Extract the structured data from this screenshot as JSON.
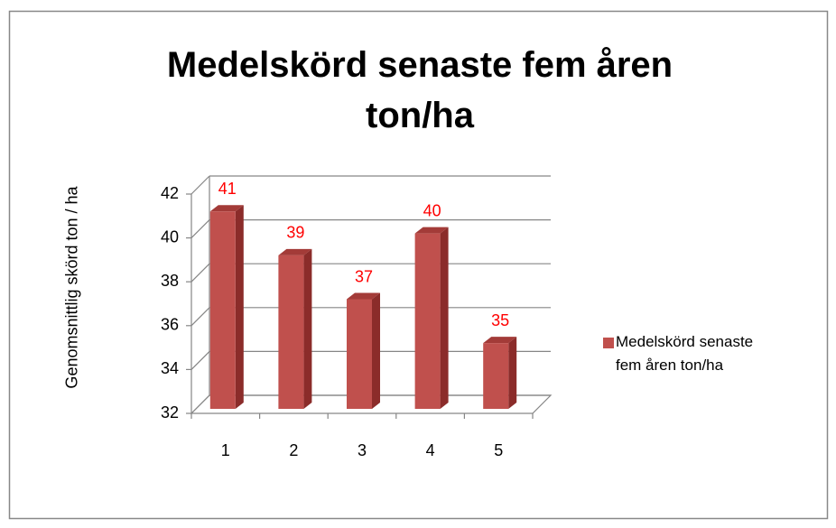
{
  "chart_data": {
    "type": "bar3d",
    "title": "Medelskörd senaste fem åren ton/ha",
    "y_label": "Genomsnittlig skörd ton / ha",
    "categories": [
      "1",
      "2",
      "3",
      "4",
      "5"
    ],
    "series": [
      {
        "name": "Medelskörd senaste fem åren ton/ha",
        "color": "#c0504d",
        "values": [
          41,
          39,
          37,
          40,
          35
        ]
      }
    ],
    "value_label_color": "#ff0000",
    "ylim": [
      32,
      42
    ],
    "yticks": [
      32,
      34,
      36,
      38,
      40,
      42
    ],
    "grid": true,
    "legend": "right"
  }
}
